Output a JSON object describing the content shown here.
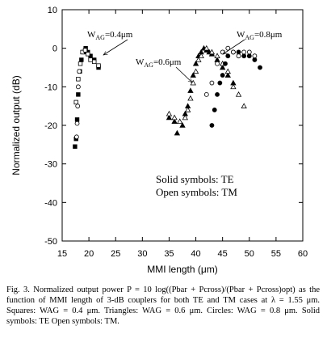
{
  "chart_data": {
    "type": "scatter",
    "x_label": "MMI length (μm)",
    "y_label": "Normalized output (dB)",
    "xlim": [
      15,
      60
    ],
    "xticks": [
      15,
      20,
      25,
      30,
      35,
      40,
      45,
      50,
      55,
      60
    ],
    "ylim": [
      -50,
      10
    ],
    "yticks": [
      -50,
      -40,
      -30,
      -20,
      -10,
      0,
      10
    ],
    "notes": [
      "Solid symbols: TE",
      "Open symbols: TM"
    ],
    "annotations": [
      {
        "text": "W",
        "sub": "AG",
        "tail": "=0.4μm"
      },
      {
        "text": "W",
        "sub": "AG",
        "tail": "=0.6μm"
      },
      {
        "text": "W",
        "sub": "AG",
        "tail": "=0.8μm"
      }
    ],
    "series": [
      {
        "marker": "square",
        "filled": true,
        "color": "#000000",
        "x": [
          17.4,
          17.6,
          17.8,
          18.0,
          18.3,
          18.6,
          19.0,
          19.4,
          19.8,
          20.3,
          21.0,
          21.8
        ],
        "values": [
          -25.5,
          -23.5,
          -18.5,
          -12,
          -6,
          -3,
          -1,
          0,
          -1,
          -2,
          -3,
          -5
        ]
      },
      {
        "marker": "square",
        "filled": false,
        "color": "#000000",
        "x": [
          17.6,
          18.0,
          18.4,
          18.8,
          19.3,
          19.8,
          20.3,
          21.0,
          21.8
        ],
        "values": [
          -14,
          -8,
          -4,
          -1,
          -0.5,
          -1.5,
          -3,
          -3.5,
          -4.5
        ]
      },
      {
        "marker": "triangle",
        "filled": true,
        "color": "#000000",
        "x": [
          35,
          36,
          36.5,
          37.5,
          38,
          38.5,
          39,
          39.5,
          40,
          40.5,
          41,
          41.5,
          42,
          42.5,
          43,
          44,
          45,
          46,
          47
        ],
        "values": [
          -18,
          -19,
          -22,
          -20,
          -17,
          -15,
          -11,
          -7,
          -4,
          -2,
          -1,
          0,
          -0.5,
          -1,
          -1.5,
          -3,
          -5,
          -7,
          -9
        ]
      },
      {
        "marker": "triangle",
        "filled": false,
        "color": "#000000",
        "x": [
          35,
          36,
          37,
          38,
          38.5,
          39,
          39.5,
          40,
          40.5,
          41,
          42,
          43,
          44,
          45,
          46,
          47,
          48,
          49
        ],
        "values": [
          -17,
          -18,
          -19,
          -18,
          -16,
          -13,
          -9,
          -6,
          -3,
          -2,
          0,
          -1,
          -2,
          -4,
          -6,
          -10,
          -12,
          -15
        ]
      },
      {
        "marker": "circle",
        "filled": true,
        "color": "#000000",
        "x": [
          43,
          43.5,
          44,
          44.5,
          45,
          45.5,
          46,
          47,
          48,
          49,
          50,
          51,
          52
        ],
        "values": [
          -20,
          -16,
          -12,
          -9,
          -7,
          -4,
          -2,
          -1,
          -1,
          -2,
          -2,
          -3,
          -5
        ]
      },
      {
        "marker": "circle",
        "filled": false,
        "color": "#000000",
        "x": [
          17.7,
          17.8,
          17.9,
          18.0,
          18.2,
          42,
          43,
          44,
          45,
          46,
          47,
          48,
          49,
          50,
          51
        ],
        "values": [
          -23,
          -19.5,
          -15,
          -10,
          -6,
          -12,
          -9,
          -4,
          -1,
          0,
          -1,
          -2,
          -1,
          -1,
          -2
        ]
      }
    ]
  },
  "caption": "Fig. 3.  Normalized output power P = 10 log((Pbar + Pcross)/(Pbar + Pcross)opt) as the function of MMI length of 3-dB couplers for both TE and TM cases at λ = 1.55 μm. Squares: WAG = 0.4 μm. Triangles: WAG = 0.6 μm. Circles: WAG = 0.8 μm. Solid symbols: TE Open symbols: TM."
}
